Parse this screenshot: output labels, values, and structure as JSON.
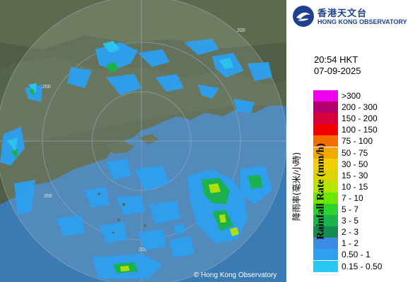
{
  "header": {
    "logo_zh": "香港天文台",
    "logo_en": "HONG KONG OBSERVATORY"
  },
  "timestamp": {
    "time": "20:54 HKT",
    "date": "07-09-2025"
  },
  "map": {
    "range_ring_labels": [
      "200",
      "200",
      "200",
      "200",
      "200"
    ],
    "copyright": "© Hong Kong Observatory"
  },
  "legend": {
    "title_en": "Rainfall Rate (mm/h)",
    "title_zh": "降雨率(毫米/小時)",
    "entries": [
      {
        "range": ">300",
        "color": "#ee00ee"
      },
      {
        "range": "200 - 300",
        "color": "#b4006e"
      },
      {
        "range": "150 - 200",
        "color": "#d8003a"
      },
      {
        "range": "100 - 150",
        "color": "#f20000"
      },
      {
        "range": "75 - 100",
        "color": "#f26d00"
      },
      {
        "range": "50 - 75",
        "color": "#f2a900"
      },
      {
        "range": "30 - 50",
        "color": "#f2cf00"
      },
      {
        "range": "15 - 30",
        "color": "#dcd400"
      },
      {
        "range": "10 - 15",
        "color": "#b4e600"
      },
      {
        "range": "7 - 10",
        "color": "#6ee600"
      },
      {
        "range": "5 - 7",
        "color": "#2ed22e"
      },
      {
        "range": "3 - 5",
        "color": "#19b44b"
      },
      {
        "range": "2 - 3",
        "color": "#148c50"
      },
      {
        "range": "1 - 2",
        "color": "#3c8ce6"
      },
      {
        "range": "0.50 - 1",
        "color": "#2ea0f0"
      },
      {
        "range": "0.15 - 0.50",
        "color": "#28c8f5"
      }
    ]
  }
}
